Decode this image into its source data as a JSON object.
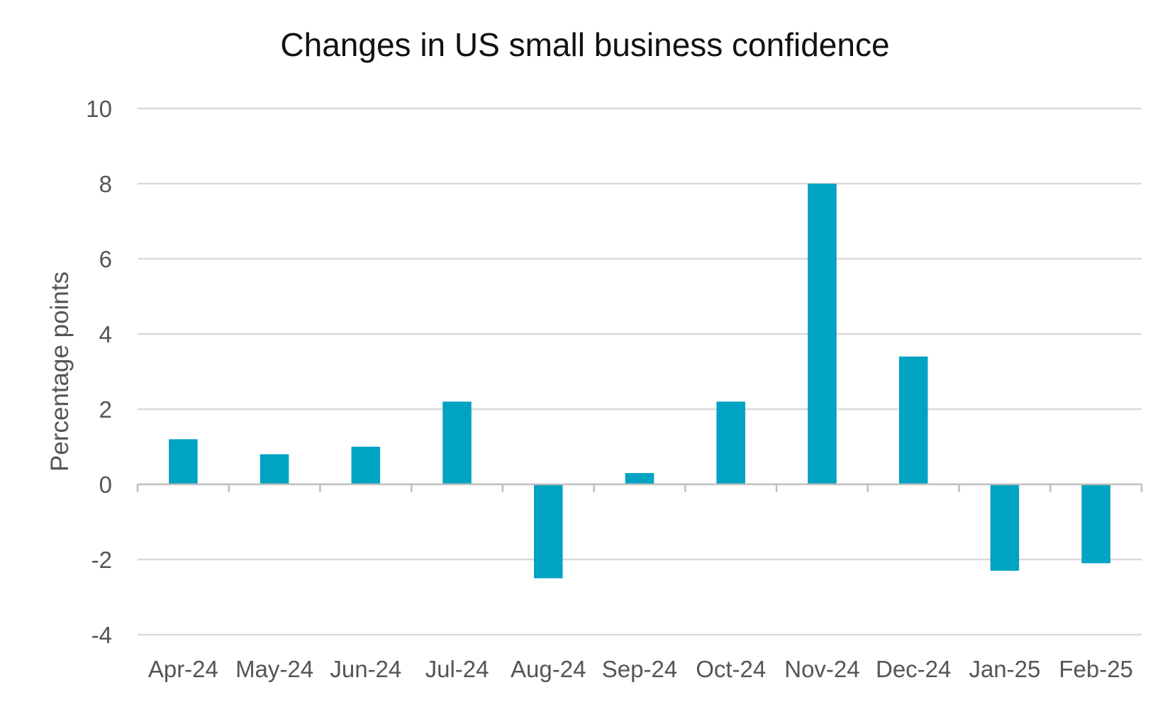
{
  "chart_data": {
    "type": "bar",
    "title": "Changes in US small business confidence",
    "xlabel": "",
    "ylabel": "Percentage points",
    "categories": [
      "Apr-24",
      "May-24",
      "Jun-24",
      "Jul-24",
      "Aug-24",
      "Sep-24",
      "Oct-24",
      "Nov-24",
      "Dec-24",
      "Jan-25",
      "Feb-25"
    ],
    "values": [
      1.2,
      0.8,
      1.0,
      2.2,
      -2.5,
      0.3,
      2.2,
      8.0,
      3.4,
      -2.3,
      -2.1
    ],
    "ylim": [
      -4,
      10
    ],
    "yticks": [
      -4,
      -2,
      0,
      2,
      4,
      6,
      8,
      10
    ],
    "ytick_labels": [
      "-4",
      "-2",
      "0",
      "2",
      "4",
      "6",
      "8",
      "10"
    ],
    "grid": true,
    "legend": "none",
    "colors": {
      "bar": "#00A3C1",
      "grid": "#D9D9D9",
      "axis": "#BFBFBF"
    }
  }
}
